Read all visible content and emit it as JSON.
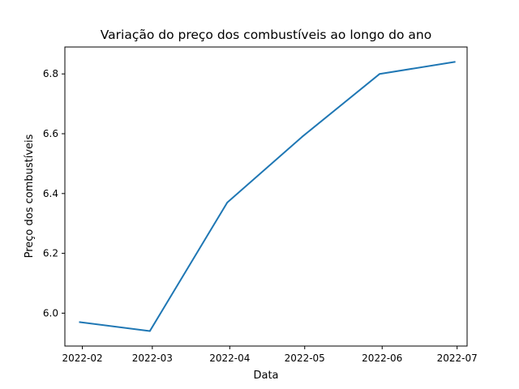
{
  "chart_data": {
    "type": "line",
    "title": "Variação do preço dos combustíveis ao longo do ano",
    "xlabel": "Data",
    "ylabel": "Preço dos combustíveis",
    "x_axis_type": "date",
    "xlim": [
      "2022-01-25",
      "2022-07-05"
    ],
    "ylim": [
      5.89,
      6.89
    ],
    "x_ticks": [
      "2022-02-01",
      "2022-03-01",
      "2022-04-01",
      "2022-05-01",
      "2022-06-01",
      "2022-07-01"
    ],
    "x_tick_labels": [
      "2022-02",
      "2022-03",
      "2022-04",
      "2022-05",
      "2022-06",
      "2022-07"
    ],
    "y_ticks": [
      6.0,
      6.2,
      6.4,
      6.6,
      6.8
    ],
    "y_tick_labels": [
      "6.0",
      "6.2",
      "6.4",
      "6.6",
      "6.8"
    ],
    "grid": false,
    "series": [
      {
        "color": "#1f77b4",
        "x": [
          "2022-01-31",
          "2022-02-28",
          "2022-03-31",
          "2022-04-30",
          "2022-05-31",
          "2022-06-30"
        ],
        "y": [
          5.97,
          5.94,
          6.37,
          6.59,
          6.8,
          6.84
        ]
      }
    ]
  }
}
